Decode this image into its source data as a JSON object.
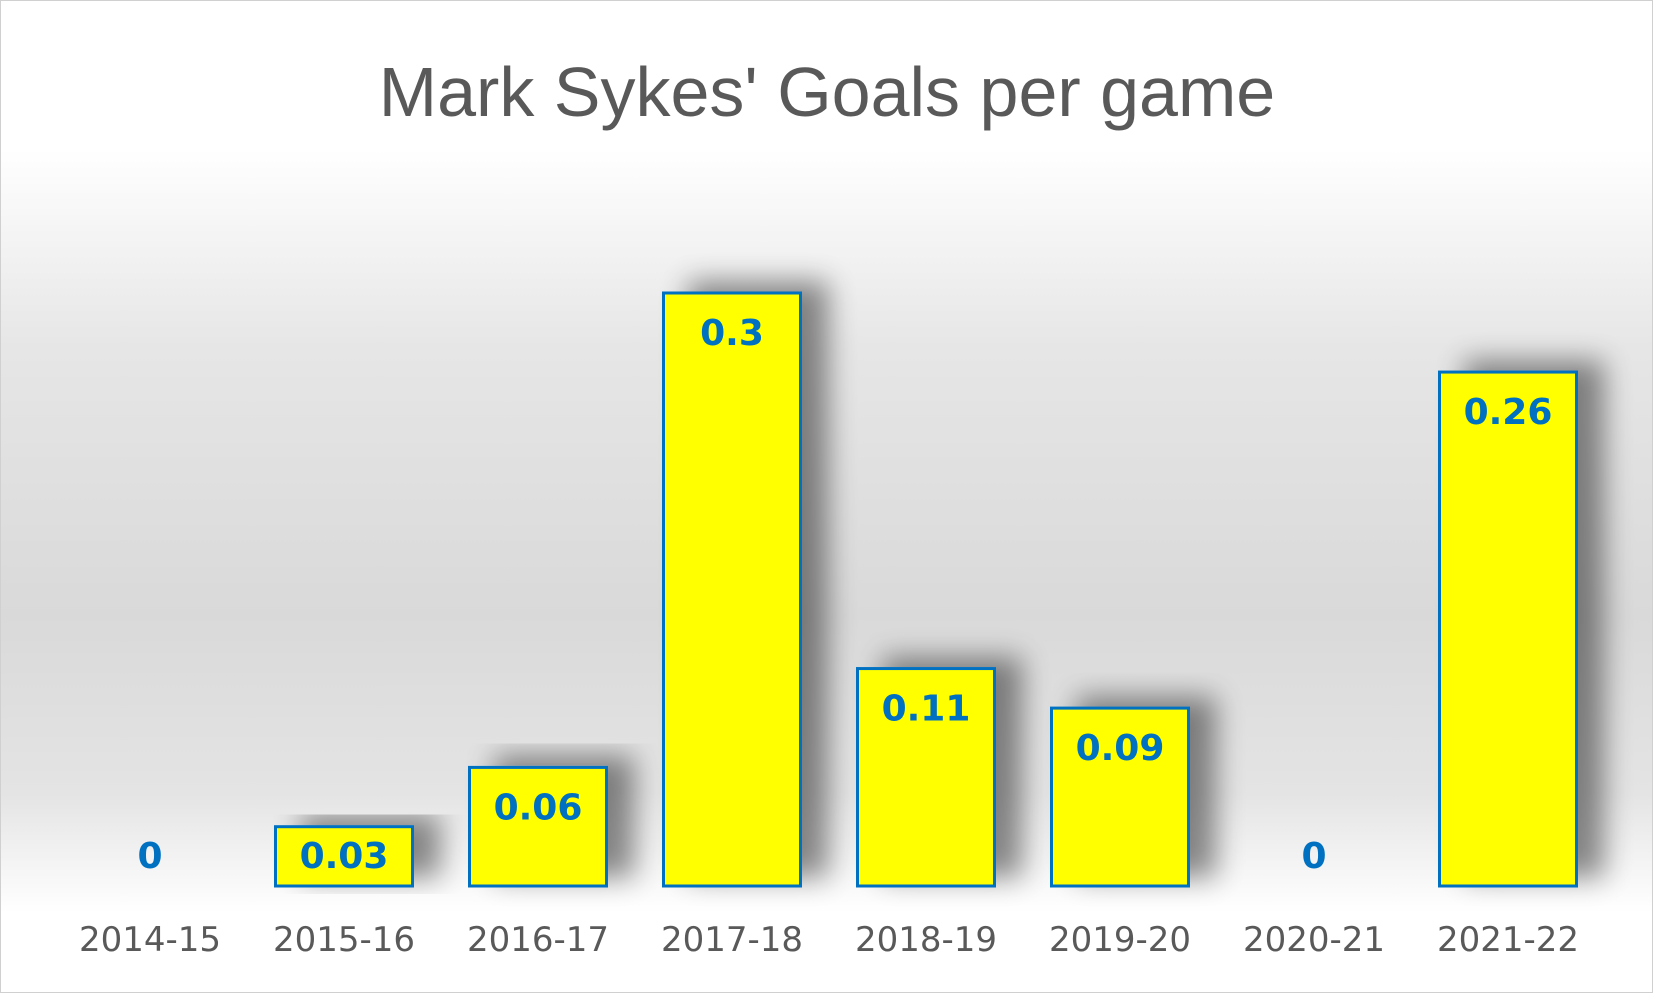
{
  "chart_data": {
    "type": "bar",
    "title": "Mark Sykes' Goals per game",
    "categories": [
      "2014-15",
      "2015-16",
      "2016-17",
      "2017-18",
      "2018-19",
      "2019-20",
      "2020-21",
      "2021-22"
    ],
    "values": [
      0,
      0.03,
      0.06,
      0.3,
      0.11,
      0.09,
      0,
      0.26
    ],
    "data_labels": [
      "0",
      "0.03",
      "0.06",
      "0.3",
      "0.11",
      "0.09",
      "0",
      "0.26"
    ],
    "xlabel": "",
    "ylabel": "",
    "ylim": [
      0,
      0.3
    ],
    "grid": false,
    "legend": "none",
    "colors": {
      "bar_fill": "#FFFF00",
      "bar_border": "#0070C0",
      "data_label": "#0070C0",
      "title": "#595959",
      "tick_label": "#595959"
    }
  }
}
